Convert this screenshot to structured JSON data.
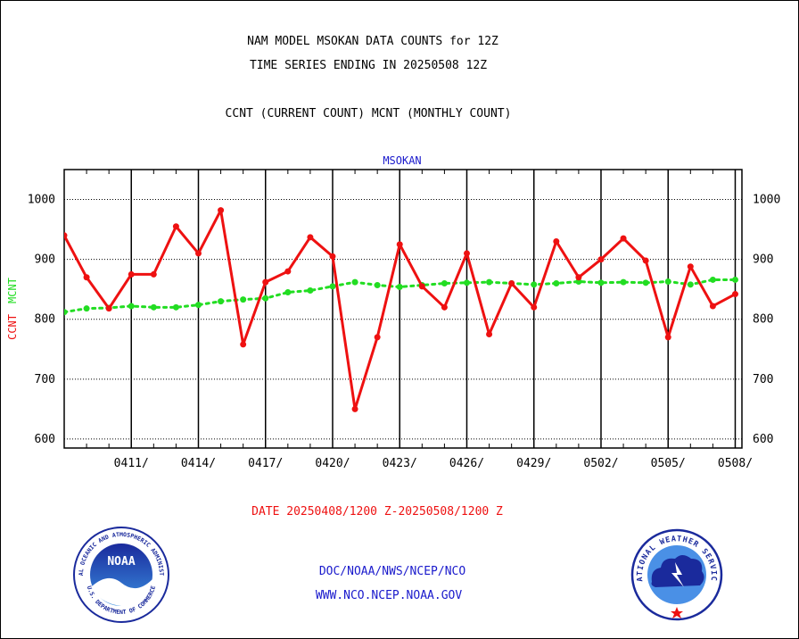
{
  "header": {
    "line1": "NAM MODEL MSOKAN DATA COUNTS for 12Z",
    "line2": "TIME SERIES ENDING IN 20250508 12Z",
    "line3": "CCNT (CURRENT COUNT) MCNT (MONTHLY COUNT)"
  },
  "footer": {
    "date_range": "DATE 20250408/1200 Z-20250508/1200 Z",
    "org": "DOC/NOAA/NWS/NCEP/NCO",
    "url": "WWW.NCO.NCEP.NOAA.GOV"
  },
  "logos": {
    "noaa": {
      "center_text": "NOAA",
      "ring_top": "NATIONAL OCEANIC AND ATMOSPHERIC ADMINISTRATION",
      "ring_bottom": "U.S. DEPARTMENT OF COMMERCE"
    },
    "nws": {
      "ring_top": "NATIONAL WEATHER SERVICE"
    }
  },
  "chart_data": {
    "type": "line",
    "title": "MSOKAN",
    "ylabel_series1": "CCNT",
    "ylabel_series2": "MCNT",
    "ylim": [
      585,
      1050
    ],
    "yticks": [
      600,
      700,
      800,
      900,
      1000
    ],
    "grid": true,
    "x_start_day": 0,
    "x_end_day": 30.3,
    "xticks": [
      {
        "label": "0411/",
        "day": 3
      },
      {
        "label": "0414/",
        "day": 6
      },
      {
        "label": "0417/",
        "day": 9
      },
      {
        "label": "0420/",
        "day": 12
      },
      {
        "label": "0423/",
        "day": 15
      },
      {
        "label": "0426/",
        "day": 18
      },
      {
        "label": "0429/",
        "day": 21
      },
      {
        "label": "0502/",
        "day": 24
      },
      {
        "label": "0505/",
        "day": 27
      },
      {
        "label": "0508/",
        "day": 30
      }
    ],
    "colors": {
      "ccnt": "#ee1111",
      "mcnt": "#22dd22",
      "title": "#1a1acc",
      "ylabel": "#ee1111"
    },
    "series": [
      {
        "name": "CCNT",
        "x": [
          0,
          1,
          2,
          3,
          4,
          5,
          6,
          7,
          8,
          9,
          10,
          11,
          12,
          13,
          14,
          15,
          16,
          17,
          18,
          19,
          20,
          21,
          22,
          23,
          24,
          25,
          26,
          27,
          28,
          29,
          30
        ],
        "values": [
          940,
          870,
          818,
          875,
          875,
          955,
          910,
          982,
          758,
          862,
          880,
          937,
          905,
          650,
          770,
          925,
          855,
          820,
          910,
          775,
          860,
          820,
          930,
          870,
          900,
          935,
          898,
          770,
          888,
          822,
          842
        ]
      },
      {
        "name": "MCNT",
        "x": [
          0,
          1,
          2,
          3,
          4,
          5,
          6,
          7,
          8,
          9,
          10,
          11,
          12,
          13,
          14,
          15,
          16,
          17,
          18,
          19,
          20,
          21,
          22,
          23,
          24,
          25,
          26,
          27,
          28,
          29,
          30
        ],
        "values": [
          812,
          818,
          819,
          822,
          820,
          820,
          824,
          830,
          833,
          835,
          845,
          848,
          855,
          862,
          857,
          854,
          857,
          860,
          861,
          862,
          860,
          858,
          860,
          863,
          861,
          862,
          861,
          863,
          858,
          866,
          866
        ]
      }
    ]
  }
}
